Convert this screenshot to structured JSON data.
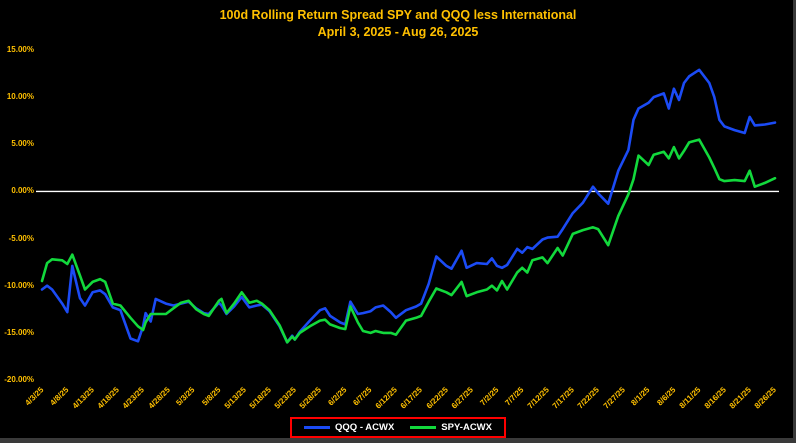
{
  "title": {
    "line1": "100d Rolling Return Spread SPY and QQQ less International",
    "line2": "April 3, 2025 - Aug 26, 2025",
    "color": "#FFC000"
  },
  "legend": {
    "border_color": "#FF0000",
    "text_color": "#ffffff"
  },
  "chart_data": {
    "type": "line",
    "title": "100d Rolling Return Spread SPY and QQQ less International",
    "subtitle": "April 3, 2025 - Aug 26, 2025",
    "background": "#000000",
    "grid": "off",
    "zero_line_color": "#ffffff",
    "axis_label_color": "#FFC000",
    "legend_position": "bottom-center",
    "ylim": [
      -20,
      15
    ],
    "y_tick_values": [
      15,
      10,
      5,
      0,
      -5,
      -10,
      -15,
      -20
    ],
    "y_tick_labels": [
      "15.00%",
      "10.00%",
      "5.00%",
      "0.00%",
      "-5.00%",
      "-10.00%",
      "-15.00%",
      "-20.00%"
    ],
    "x_tick_days": [
      0,
      5,
      10,
      15,
      20,
      25,
      30,
      35,
      40,
      45,
      50,
      55,
      60,
      65,
      70,
      75,
      80,
      85,
      90,
      95,
      100,
      105,
      110,
      115,
      120,
      125,
      130,
      135,
      140,
      145
    ],
    "x_tick_labels": [
      "4/3/25",
      "4/8/25",
      "4/13/25",
      "4/18/25",
      "4/23/25",
      "4/28/25",
      "5/3/25",
      "5/8/25",
      "5/13/25",
      "5/18/25",
      "5/23/25",
      "5/28/25",
      "6/2/25",
      "6/7/25",
      "6/12/25",
      "6/17/25",
      "6/22/25",
      "6/27/25",
      "7/2/25",
      "7/7/25",
      "7/12/25",
      "7/17/25",
      "7/22/25",
      "7/27/25",
      "8/1/25",
      "8/6/25",
      "8/11/25",
      "8/16/25",
      "8/21/25",
      "8/26/25"
    ],
    "series": [
      {
        "name": "QQQ - ACWX",
        "color": "#1b4bf5"
      },
      {
        "name": "SPY-ACWX",
        "color": "#12d93c"
      }
    ],
    "points_format": [
      "day_offset_from_4_3_25",
      "qqq_minus_acwx_pct",
      "spy_minus_acwx_pct"
    ],
    "points": [
      [
        0,
        -10.4,
        -9.5
      ],
      [
        1,
        -10.0,
        -7.6
      ],
      [
        2,
        -10.4,
        -7.2
      ],
      [
        4,
        -11.9,
        -7.3
      ],
      [
        5,
        -12.8,
        -7.7
      ],
      [
        6,
        -7.9,
        -6.7
      ],
      [
        7.5,
        -11.3,
        -8.9
      ],
      [
        8.5,
        -12.1,
        -10.4
      ],
      [
        10,
        -10.7,
        -9.6
      ],
      [
        11.5,
        -10.5,
        -9.3
      ],
      [
        12.5,
        -10.9,
        -9.6
      ],
      [
        14,
        -12.3,
        -11.9
      ],
      [
        15.5,
        -12.6,
        -12.1
      ],
      [
        17.5,
        -15.6,
        -13.4
      ],
      [
        19,
        -15.9,
        -14.3
      ],
      [
        20,
        -14.3,
        -14.7
      ],
      [
        20.5,
        -12.9,
        -13.9
      ],
      [
        21.5,
        -13.8,
        -13.0
      ],
      [
        22.5,
        -11.4,
        -13.0
      ],
      [
        24.5,
        -11.9,
        -13.0
      ],
      [
        26,
        -12.1,
        -12.4
      ],
      [
        27.5,
        -11.9,
        -11.8
      ],
      [
        29,
        -11.7,
        -11.6
      ],
      [
        30.5,
        -12.4,
        -12.5
      ],
      [
        32,
        -12.9,
        -13.0
      ],
      [
        33,
        -13.0,
        -13.2
      ],
      [
        35,
        -11.8,
        -11.6
      ],
      [
        35.5,
        -12.1,
        -11.4
      ],
      [
        36.5,
        -13.0,
        -12.9
      ],
      [
        38,
        -12.2,
        -11.9
      ],
      [
        39.5,
        -11.2,
        -10.7
      ],
      [
        41,
        -12.3,
        -11.8
      ],
      [
        42.5,
        -12.1,
        -11.6
      ],
      [
        43.5,
        -12.0,
        -11.9
      ],
      [
        45,
        -12.7,
        -12.6
      ],
      [
        47,
        -14.3,
        -14.2
      ],
      [
        48.5,
        -16.0,
        -16.0
      ],
      [
        49.5,
        -15.3,
        -15.4
      ],
      [
        50,
        -15.7,
        -15.7
      ],
      [
        51,
        -14.9,
        -15.0
      ],
      [
        53,
        -13.7,
        -14.3
      ],
      [
        55,
        -12.6,
        -13.7
      ],
      [
        56,
        -12.4,
        -13.6
      ],
      [
        57,
        -13.2,
        -14.1
      ],
      [
        59,
        -13.9,
        -14.5
      ],
      [
        60,
        -14.1,
        -14.6
      ],
      [
        61,
        -11.7,
        -12.2
      ],
      [
        62.5,
        -13.0,
        -13.9
      ],
      [
        63.5,
        -12.9,
        -14.8
      ],
      [
        65,
        -12.7,
        -15.0
      ],
      [
        66,
        -12.3,
        -14.8
      ],
      [
        67.5,
        -12.1,
        -15.0
      ],
      [
        69,
        -12.8,
        -15.0
      ],
      [
        70,
        -13.4,
        -15.2
      ],
      [
        72,
        -12.6,
        -13.7
      ],
      [
        74,
        -12.2,
        -13.4
      ],
      [
        75,
        -11.9,
        -13.2
      ],
      [
        76.5,
        -9.8,
        -11.7
      ],
      [
        78,
        -6.9,
        -10.3
      ],
      [
        80,
        -7.9,
        -10.7
      ],
      [
        81,
        -8.2,
        -11.0
      ],
      [
        83,
        -6.3,
        -9.6
      ],
      [
        84,
        -8.1,
        -11.1
      ],
      [
        86,
        -7.6,
        -10.7
      ],
      [
        88,
        -7.7,
        -10.4
      ],
      [
        89,
        -7.1,
        -10.0
      ],
      [
        90,
        -7.9,
        -10.5
      ],
      [
        91,
        -8.1,
        -9.5
      ],
      [
        92,
        -7.8,
        -10.4
      ],
      [
        94,
        -6.1,
        -8.6
      ],
      [
        95,
        -6.5,
        -8.1
      ],
      [
        96,
        -5.9,
        -8.6
      ],
      [
        97,
        -6.1,
        -7.3
      ],
      [
        99,
        -5.1,
        -7.0
      ],
      [
        100,
        -4.9,
        -7.6
      ],
      [
        102,
        -4.8,
        -6.0
      ],
      [
        103,
        -4.0,
        -6.8
      ],
      [
        105,
        -2.3,
        -4.5
      ],
      [
        107,
        -1.2,
        -4.1
      ],
      [
        109,
        0.5,
        -3.8
      ],
      [
        110,
        -0.2,
        -4.0
      ],
      [
        112,
        -1.3,
        -5.7
      ],
      [
        114,
        2.2,
        -2.6
      ],
      [
        116,
        4.4,
        -0.3
      ],
      [
        117,
        7.6,
        1.3
      ],
      [
        118,
        8.8,
        3.8
      ],
      [
        120,
        9.4,
        2.8
      ],
      [
        121,
        10.0,
        3.9
      ],
      [
        123,
        10.4,
        4.2
      ],
      [
        124,
        8.8,
        3.5
      ],
      [
        125,
        10.9,
        4.7
      ],
      [
        126,
        9.7,
        3.5
      ],
      [
        127,
        11.5,
        4.3
      ],
      [
        128,
        12.2,
        5.2
      ],
      [
        130,
        12.9,
        5.5
      ],
      [
        132,
        11.5,
        3.6
      ],
      [
        133,
        10.0,
        2.5
      ],
      [
        134,
        7.6,
        1.3
      ],
      [
        135,
        6.9,
        1.1
      ],
      [
        137,
        6.5,
        1.2
      ],
      [
        139,
        6.2,
        1.1
      ],
      [
        140,
        7.9,
        2.2
      ],
      [
        141,
        7.0,
        0.5
      ],
      [
        143,
        7.1,
        0.9
      ],
      [
        145,
        7.3,
        1.4
      ]
    ]
  }
}
